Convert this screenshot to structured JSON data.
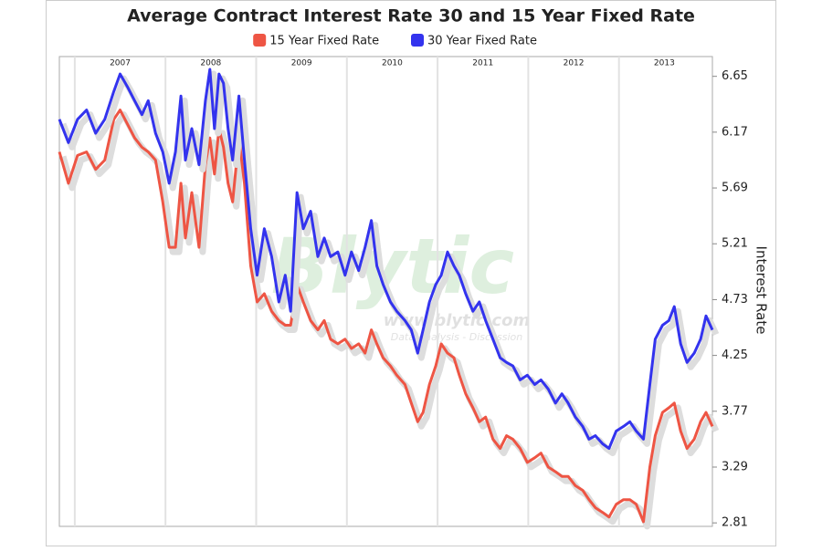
{
  "chart_data": {
    "type": "line",
    "title": "Average Contract Interest Rate 30 and 15 Year Fixed Rate",
    "y_axis_label": "Interest Rate",
    "watermark": {
      "brand": "Blytic",
      "url": "www.blytic.com",
      "tagline": "Data Analysis - Discussion"
    },
    "xlim": [
      2006.83,
      2014.03
    ],
    "ylim": [
      2.78,
      6.82
    ],
    "xticks": [
      2007,
      2008,
      2009,
      2010,
      2011,
      2012,
      2013
    ],
    "yticks": [
      2.81,
      3.29,
      3.77,
      4.25,
      4.73,
      5.21,
      5.69,
      6.17,
      6.65
    ],
    "xgrid": true,
    "ygrid": false,
    "legend": "top",
    "x": [
      2006.83,
      2006.93,
      2007.03,
      2007.13,
      2007.23,
      2007.33,
      2007.43,
      2007.5,
      2007.58,
      2007.66,
      2007.74,
      2007.81,
      2007.89,
      2007.97,
      2008.04,
      2008.11,
      2008.17,
      2008.22,
      2008.29,
      2008.37,
      2008.44,
      2008.49,
      2008.54,
      2008.59,
      2008.64,
      2008.69,
      2008.74,
      2008.81,
      2008.87,
      2008.94,
      2009.01,
      2009.09,
      2009.17,
      2009.25,
      2009.32,
      2009.38,
      2009.45,
      2009.52,
      2009.6,
      2009.68,
      2009.75,
      2009.82,
      2009.9,
      2009.98,
      2010.05,
      2010.13,
      2010.2,
      2010.27,
      2010.33,
      2010.4,
      2010.48,
      2010.55,
      2010.64,
      2010.71,
      2010.78,
      2010.84,
      2010.91,
      2010.98,
      2011.04,
      2011.11,
      2011.18,
      2011.24,
      2011.31,
      2011.39,
      2011.46,
      2011.53,
      2011.61,
      2011.69,
      2011.76,
      2011.83,
      2011.91,
      2011.99,
      2012.07,
      2012.14,
      2012.22,
      2012.3,
      2012.37,
      2012.44,
      2012.52,
      2012.6,
      2012.67,
      2012.74,
      2012.82,
      2012.89,
      2012.97,
      2013.05,
      2013.12,
      2013.19,
      2013.27,
      2013.34,
      2013.4,
      2013.48,
      2013.55,
      2013.61,
      2013.68,
      2013.75,
      2013.83,
      2013.9,
      2013.96,
      2014.03
    ],
    "series": [
      {
        "name": "15 Year Fixed Rate",
        "color": "#ee5544",
        "values": [
          6.0,
          5.73,
          5.97,
          6.0,
          5.85,
          5.93,
          6.28,
          6.36,
          6.24,
          6.12,
          6.04,
          6.0,
          5.93,
          5.57,
          5.18,
          5.18,
          5.73,
          5.26,
          5.65,
          5.18,
          5.89,
          6.12,
          5.81,
          6.2,
          6.04,
          5.73,
          5.57,
          6.12,
          5.73,
          5.02,
          4.71,
          4.78,
          4.63,
          4.55,
          4.51,
          4.51,
          4.86,
          4.71,
          4.55,
          4.47,
          4.55,
          4.39,
          4.35,
          4.39,
          4.31,
          4.35,
          4.27,
          4.47,
          4.35,
          4.23,
          4.16,
          4.08,
          4.0,
          3.84,
          3.68,
          3.76,
          4.0,
          4.16,
          4.35,
          4.27,
          4.23,
          4.08,
          3.92,
          3.8,
          3.68,
          3.72,
          3.53,
          3.45,
          3.56,
          3.53,
          3.45,
          3.33,
          3.37,
          3.41,
          3.29,
          3.25,
          3.21,
          3.21,
          3.13,
          3.09,
          3.01,
          2.94,
          2.9,
          2.86,
          2.97,
          3.01,
          3.01,
          2.97,
          2.82,
          3.29,
          3.56,
          3.76,
          3.8,
          3.84,
          3.6,
          3.45,
          3.53,
          3.68,
          3.76,
          3.64
        ]
      },
      {
        "name": "30 Year Fixed Rate",
        "color": "#3333ee",
        "values": [
          6.28,
          6.08,
          6.28,
          6.36,
          6.16,
          6.28,
          6.52,
          6.67,
          6.56,
          6.44,
          6.32,
          6.44,
          6.16,
          6.0,
          5.73,
          6.0,
          6.48,
          5.93,
          6.2,
          5.89,
          6.44,
          6.71,
          6.2,
          6.67,
          6.59,
          6.2,
          5.93,
          6.48,
          5.93,
          5.34,
          4.94,
          5.34,
          5.1,
          4.71,
          4.94,
          4.63,
          5.65,
          5.34,
          5.49,
          5.1,
          5.26,
          5.1,
          5.14,
          4.94,
          5.14,
          4.98,
          5.18,
          5.41,
          5.02,
          4.86,
          4.71,
          4.63,
          4.55,
          4.47,
          4.27,
          4.47,
          4.71,
          4.86,
          4.94,
          5.14,
          5.02,
          4.94,
          4.78,
          4.63,
          4.71,
          4.55,
          4.39,
          4.23,
          4.19,
          4.16,
          4.04,
          4.08,
          4.0,
          4.04,
          3.96,
          3.84,
          3.92,
          3.84,
          3.72,
          3.64,
          3.53,
          3.56,
          3.49,
          3.45,
          3.6,
          3.64,
          3.68,
          3.6,
          3.53,
          4.0,
          4.39,
          4.51,
          4.55,
          4.67,
          4.35,
          4.19,
          4.27,
          4.39,
          4.59,
          4.47
        ]
      }
    ]
  }
}
